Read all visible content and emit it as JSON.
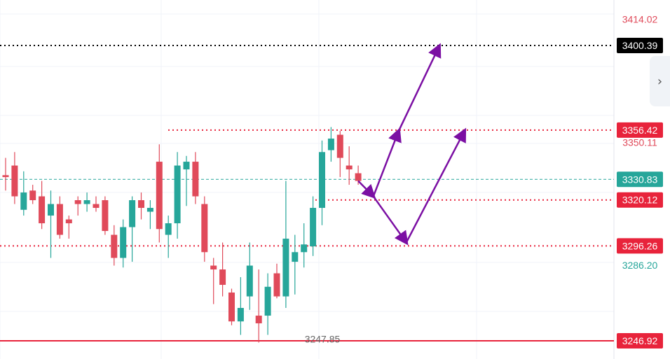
{
  "chart_data": {
    "type": "candlestick",
    "ylim": [
      3238.0,
      3420.0
    ],
    "colors": {
      "up": "#26a69a",
      "down": "#e04a5a",
      "arrow": "#7b0fa3",
      "grid": "#f0f3fa",
      "line_red": "#e8233b",
      "last_green": "#26a69a"
    },
    "candles": [
      {
        "o": 3333,
        "h": 3342,
        "l": 3325,
        "c": 3332
      },
      {
        "o": 3338,
        "h": 3345,
        "l": 3318,
        "c": 3322
      },
      {
        "o": 3315,
        "h": 3335,
        "l": 3312,
        "c": 3324
      },
      {
        "o": 3325,
        "h": 3328,
        "l": 3318,
        "c": 3320
      },
      {
        "o": 3322,
        "h": 3330,
        "l": 3305,
        "c": 3308
      },
      {
        "o": 3312,
        "h": 3325,
        "l": 3290,
        "c": 3318
      },
      {
        "o": 3318,
        "h": 3322,
        "l": 3300,
        "c": 3302
      },
      {
        "o": 3310,
        "h": 3312,
        "l": 3300,
        "c": 3308
      },
      {
        "o": 3320,
        "h": 3322,
        "l": 3312,
        "c": 3318
      },
      {
        "o": 3318,
        "h": 3324,
        "l": 3314,
        "c": 3320
      },
      {
        "o": 3318,
        "h": 3322,
        "l": 3314,
        "c": 3316
      },
      {
        "o": 3320,
        "h": 3322,
        "l": 3302,
        "c": 3304
      },
      {
        "o": 3302,
        "h": 3307,
        "l": 3286,
        "c": 3290
      },
      {
        "o": 3290,
        "h": 3310,
        "l": 3285,
        "c": 3306
      },
      {
        "o": 3306,
        "h": 3322,
        "l": 3288,
        "c": 3320
      },
      {
        "o": 3320,
        "h": 3324,
        "l": 3310,
        "c": 3316
      },
      {
        "o": 3314,
        "h": 3320,
        "l": 3305,
        "c": 3316
      },
      {
        "o": 3340,
        "h": 3349,
        "l": 3298,
        "c": 3305
      },
      {
        "o": 3302,
        "h": 3312,
        "l": 3290,
        "c": 3308
      },
      {
        "o": 3308,
        "h": 3345,
        "l": 3300,
        "c": 3338
      },
      {
        "o": 3336,
        "h": 3343,
        "l": 3317,
        "c": 3340
      },
      {
        "o": 3340,
        "h": 3345,
        "l": 3318,
        "c": 3322
      },
      {
        "o": 3318,
        "h": 3322,
        "l": 3288,
        "c": 3293
      },
      {
        "o": 3286,
        "h": 3290,
        "l": 3266,
        "c": 3284
      },
      {
        "o": 3284,
        "h": 3298,
        "l": 3270,
        "c": 3276
      },
      {
        "o": 3272,
        "h": 3274,
        "l": 3255,
        "c": 3257
      },
      {
        "o": 3257,
        "h": 3280,
        "l": 3250,
        "c": 3264
      },
      {
        "o": 3270,
        "h": 3298,
        "l": 3263,
        "c": 3286
      },
      {
        "o": 3260,
        "h": 3284,
        "l": 3246,
        "c": 3256
      },
      {
        "o": 3260,
        "h": 3282,
        "l": 3250,
        "c": 3275
      },
      {
        "o": 3282,
        "h": 3287,
        "l": 3269,
        "c": 3270
      },
      {
        "o": 3270,
        "h": 3330,
        "l": 3264,
        "c": 3300
      },
      {
        "o": 3288,
        "h": 3302,
        "l": 3271,
        "c": 3293
      },
      {
        "o": 3293,
        "h": 3308,
        "l": 3285,
        "c": 3297
      },
      {
        "o": 3296,
        "h": 3322,
        "l": 3291,
        "c": 3316
      },
      {
        "o": 3316,
        "h": 3351,
        "l": 3307,
        "c": 3345
      },
      {
        "o": 3346,
        "h": 3358,
        "l": 3340,
        "c": 3352
      },
      {
        "o": 3354,
        "h": 3356,
        "l": 3332,
        "c": 3342
      },
      {
        "o": 3338,
        "h": 3348,
        "l": 3328,
        "c": 3336
      },
      {
        "o": 3334,
        "h": 3338,
        "l": 3328,
        "c": 3330
      }
    ],
    "levels": [
      {
        "value": 3400.39,
        "label": "3400.39",
        "color": "#000000",
        "style": "dotted",
        "badge": true
      },
      {
        "value": 3356.42,
        "label": "3356.42",
        "color": "#e8233b",
        "style": "dotted",
        "badge": true
      },
      {
        "value": 3320.12,
        "label": "3320.12",
        "color": "#e8233b",
        "style": "dotted",
        "badge": true
      },
      {
        "value": 3296.26,
        "label": "3296.26",
        "color": "#e8233b",
        "style": "dotted",
        "badge": true
      },
      {
        "value": 3246.92,
        "label": "3246.92",
        "color": "#e8233b",
        "style": "solid",
        "badge": true
      },
      {
        "value": 3330.83,
        "label": "3330.83",
        "color": "#26a69a",
        "style": "dashed",
        "badge": true
      }
    ],
    "axis_labels": [
      {
        "value": 3414.02,
        "label": "3414.02",
        "color": "#e04a5a"
      },
      {
        "value": 3350.11,
        "label": "3350.11",
        "color": "#e04a5a"
      },
      {
        "value": 3286.2,
        "label": "3286.20",
        "color": "#26a69a"
      }
    ],
    "low_marker": {
      "value": 3247.85,
      "label": "3247.85"
    },
    "arrows": [
      {
        "from": [
          3330,
          0
        ],
        "to": [
          3322,
          1.2
        ]
      },
      {
        "from": [
          3322,
          1.2
        ],
        "to": [
          3356,
          3.2
        ]
      },
      {
        "from": [
          3356,
          3.2
        ],
        "to": [
          3400,
          6.4
        ]
      },
      {
        "from": [
          3322,
          1.2
        ],
        "to": [
          3298,
          3.8
        ]
      },
      {
        "from": [
          3298,
          3.8
        ],
        "to": [
          3356,
          8.4
        ]
      }
    ]
  }
}
